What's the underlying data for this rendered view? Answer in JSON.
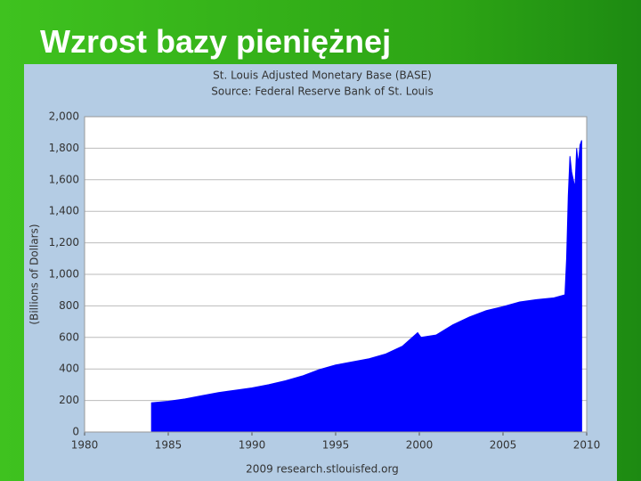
{
  "slide_title": "Wzrost bazy pieniężnej",
  "chart_data": {
    "type": "area",
    "title": "St. Louis Adjusted Monetary Base (BASE)",
    "subtitle": "Source: Federal Reserve Bank of St. Louis",
    "ylabel": "(Billions of Dollars)",
    "caption": "2009 research.stlouisfed.org",
    "color": "#0000ff",
    "grid": true,
    "x": [
      1984.0,
      1985,
      1986,
      1987,
      1988,
      1989,
      1990,
      1991,
      1992,
      1993,
      1994,
      1995,
      1996,
      1997,
      1998,
      1999,
      1999.9,
      2000.1,
      2001,
      2002,
      2003,
      2004,
      2005,
      2006,
      2007,
      2008,
      2008.7,
      2008.8,
      2008.9,
      2009.0,
      2009.1,
      2009.3,
      2009.4,
      2009.5,
      2009.6,
      2009.7
    ],
    "values": [
      185,
      195,
      210,
      230,
      250,
      265,
      280,
      300,
      325,
      355,
      395,
      425,
      445,
      465,
      495,
      545,
      630,
      600,
      615,
      680,
      730,
      770,
      795,
      825,
      840,
      850,
      870,
      1100,
      1500,
      1750,
      1650,
      1550,
      1800,
      1700,
      1820,
      1850
    ],
    "xlim": [
      1980,
      2010
    ],
    "xticks": [
      1980,
      1985,
      1990,
      1995,
      2000,
      2005,
      2010
    ],
    "ylim": [
      0,
      2000
    ],
    "yticks": [
      0,
      200,
      400,
      600,
      800,
      {
        "value": 1000,
        "label": "1,000"
      },
      {
        "value": 1200,
        "label": "1,200"
      },
      {
        "value": 1400,
        "label": "1,400"
      },
      {
        "value": 1600,
        "label": "1,600"
      },
      {
        "value": 1800,
        "label": "1,800"
      },
      {
        "value": 2000,
        "label": "2,000"
      }
    ]
  }
}
